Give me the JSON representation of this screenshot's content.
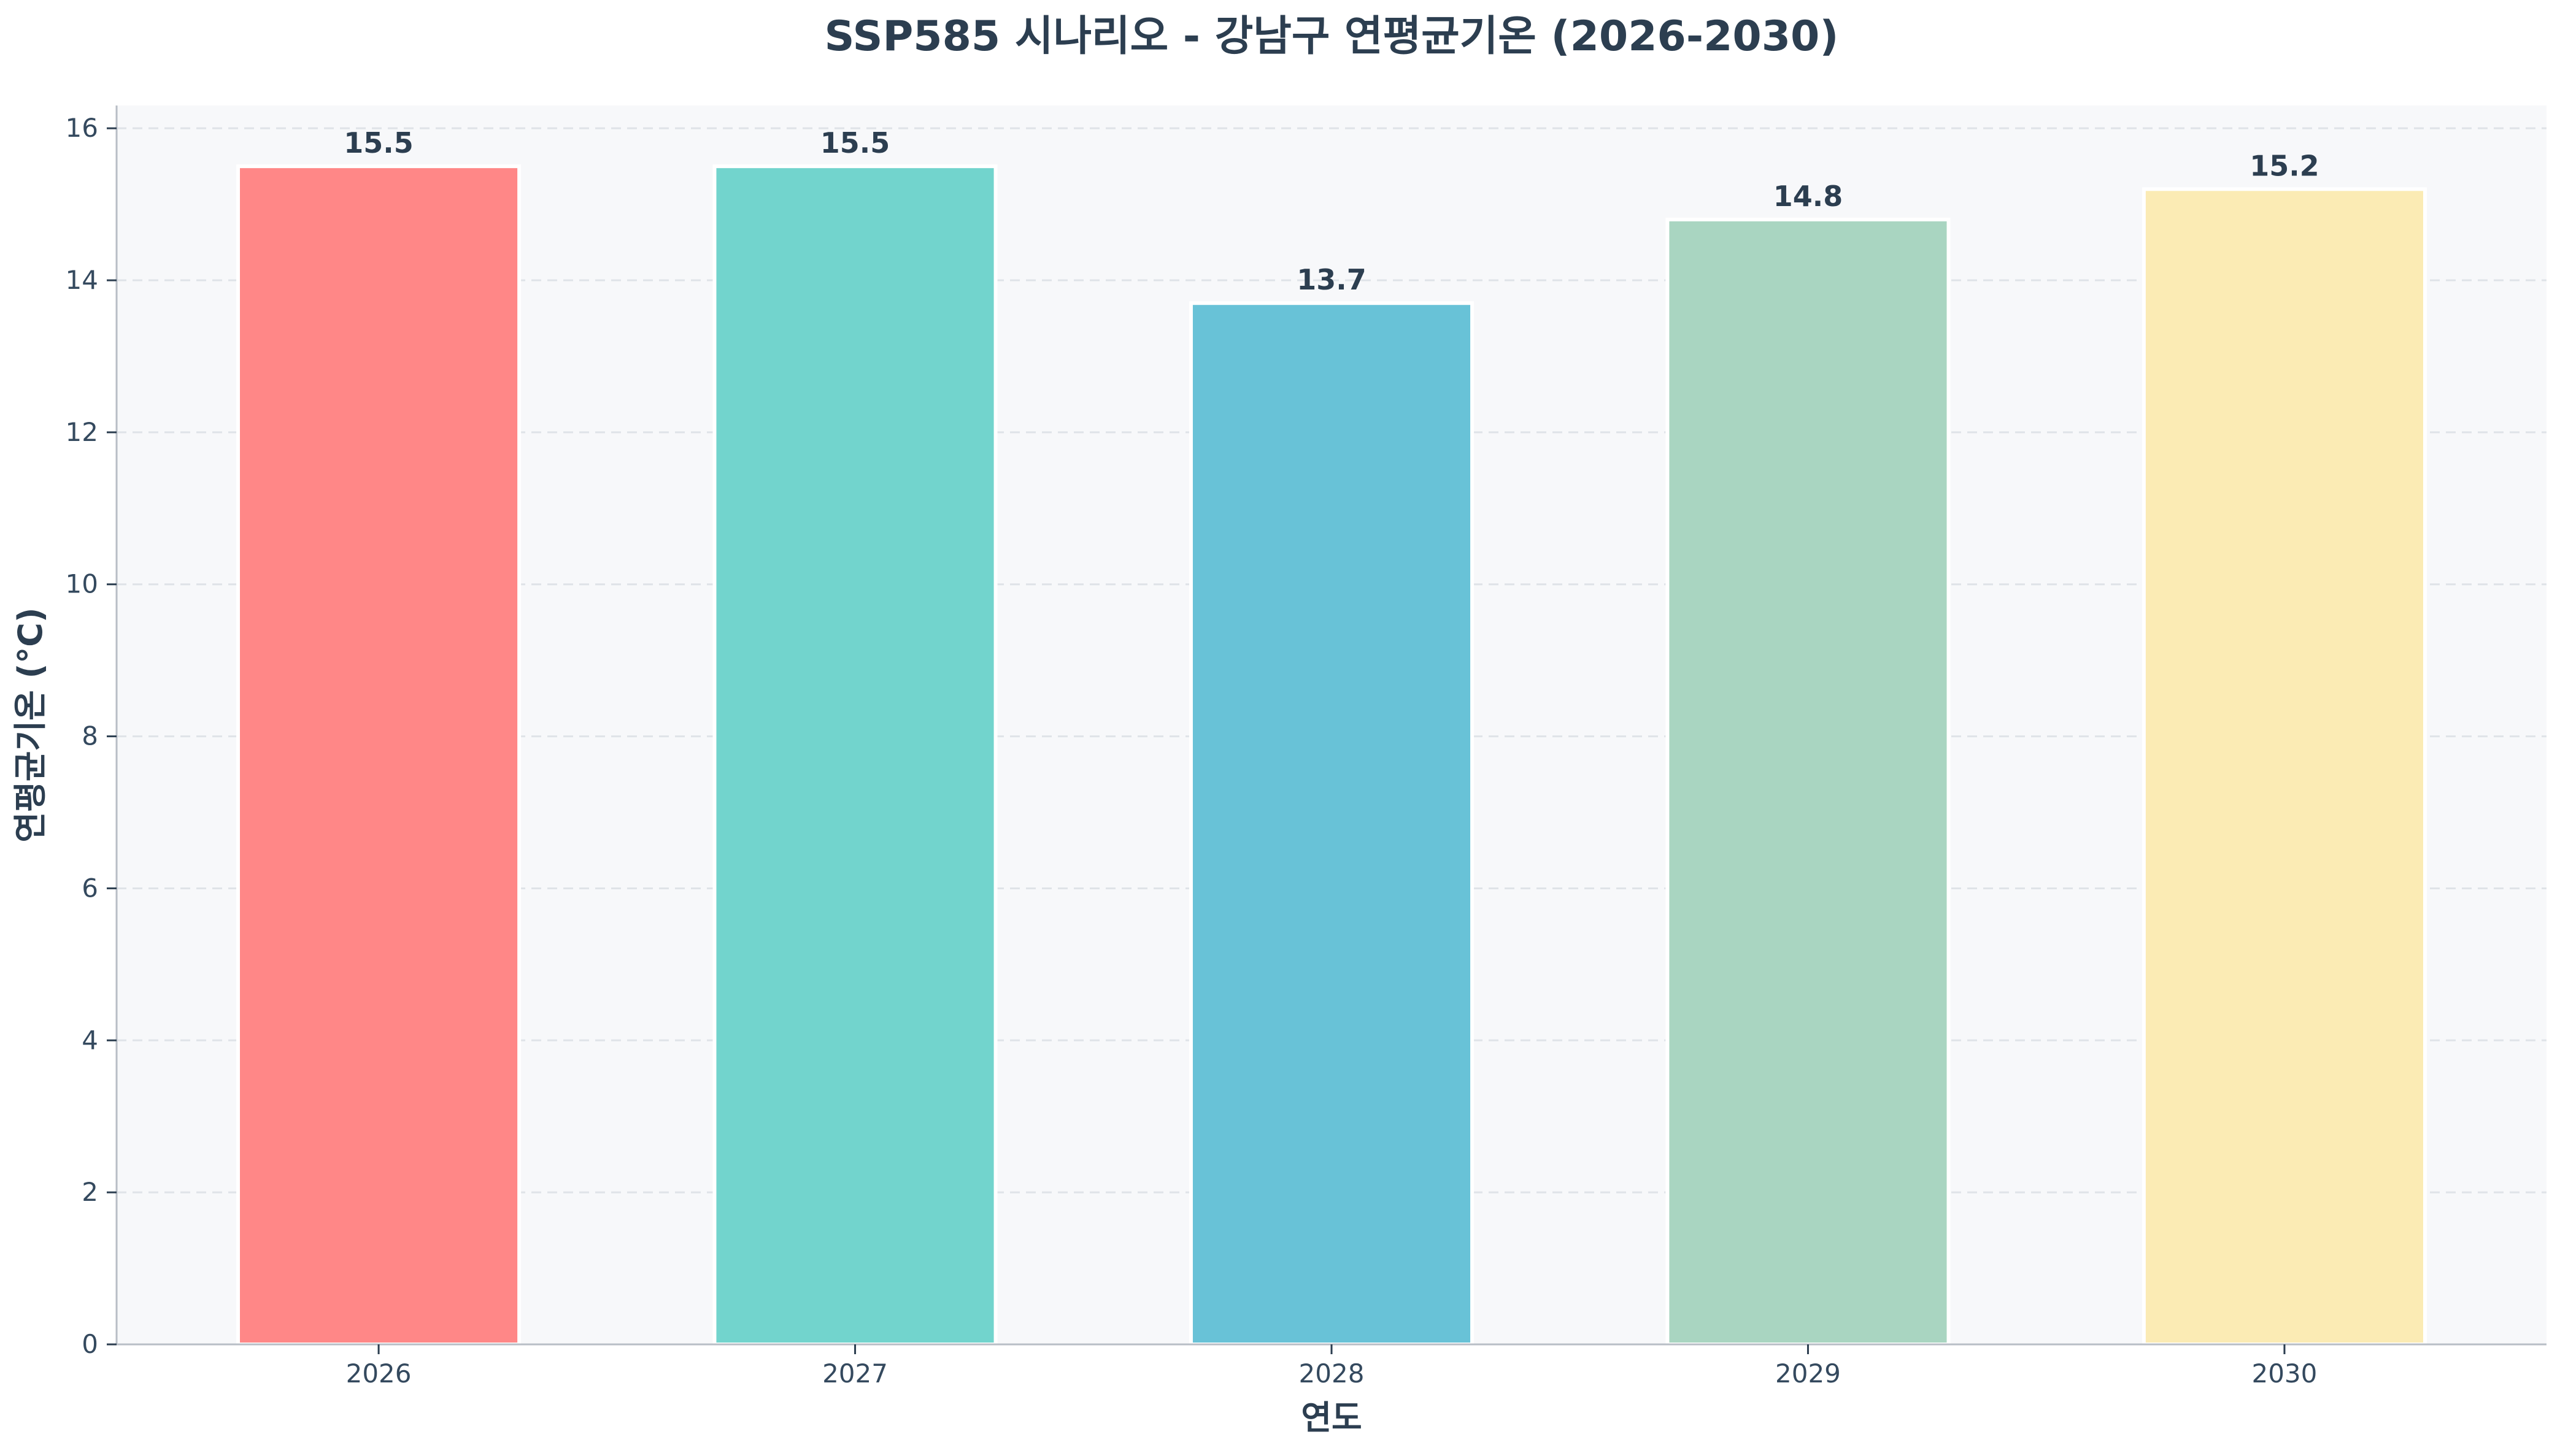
{
  "chart_data": {
    "type": "bar",
    "title": "SSP585 시나리오 - 강남구 연평균기온 (2026-2030)",
    "xlabel": "연도",
    "ylabel": "연평균기온 (°C)",
    "categories": [
      "2026",
      "2027",
      "2028",
      "2029",
      "2030"
    ],
    "values": [
      15.5,
      15.5,
      13.7,
      14.8,
      15.2
    ],
    "value_labels": [
      "15.5",
      "15.5",
      "13.7",
      "14.8",
      "15.2"
    ],
    "colors": [
      "#ff8787",
      "#72d4cd",
      "#68c2d7",
      "#a9d5c1",
      "#fbebb4"
    ],
    "ylim": [
      0,
      16.3
    ],
    "yticks": [
      0,
      2,
      4,
      6,
      8,
      10,
      12,
      14,
      16
    ],
    "grid": true,
    "legend": "none",
    "plot_background": "#f7f8fa",
    "text_color": "#2c3e50"
  }
}
